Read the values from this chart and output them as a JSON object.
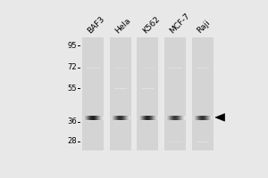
{
  "background_color": "#e8e8e8",
  "lane_bg_color": "#d4d4d4",
  "num_lanes": 5,
  "lane_labels": [
    "BAF3",
    "Hela",
    "K562",
    "MCF-7",
    "Raji"
  ],
  "mw_values": [
    95,
    72,
    55,
    36,
    28
  ],
  "label_fontsize": 6.5,
  "mw_fontsize": 6,
  "main_band_intensity": 0.88,
  "faint_bands": [
    {
      "lane": 0,
      "log_mw": 4.26,
      "intensity": 0.18
    },
    {
      "lane": 1,
      "log_mw": 4.26,
      "intensity": 0.18
    },
    {
      "lane": 2,
      "log_mw": 4.26,
      "intensity": 0.18
    },
    {
      "lane": 3,
      "log_mw": 4.26,
      "intensity": 0.15
    },
    {
      "lane": 4,
      "log_mw": 4.26,
      "intensity": 0.15
    },
    {
      "lane": 1,
      "log_mw": 4.0,
      "intensity": 0.15
    },
    {
      "lane": 2,
      "log_mw": 4.0,
      "intensity": 0.15
    },
    {
      "lane": 3,
      "log_mw": 3.74,
      "intensity": 0.15
    },
    {
      "lane": 4,
      "log_mw": 3.74,
      "intensity": 0.13
    }
  ]
}
